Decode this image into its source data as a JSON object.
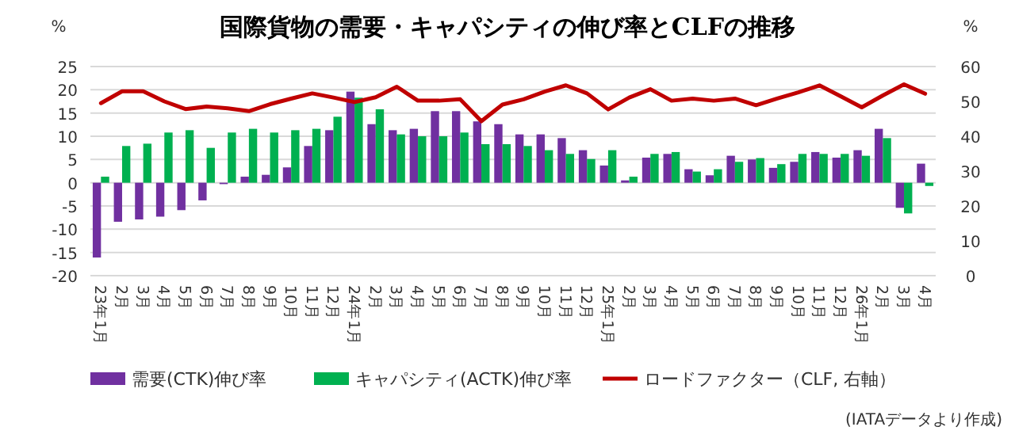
{
  "chart_data": {
    "type": "bar",
    "title": "国際貨物の需要・キャパシティの伸び率とCLFの推移",
    "ylabel": "%",
    "y2label": "%",
    "categories": [
      "23年1月",
      "2月",
      "3月",
      "4月",
      "5月",
      "6月",
      "7月",
      "8月",
      "9月",
      "10月",
      "11月",
      "12月",
      "24年1月",
      "2月",
      "3月",
      "4月",
      "5月",
      "6月",
      "7月",
      "8月",
      "9月",
      "10月",
      "11月",
      "12月",
      "25年1月",
      "2月",
      "3月",
      "4月",
      "5月",
      "6月",
      "7月",
      "8月",
      "9月",
      "10月",
      "11月",
      "12月",
      "26年1月",
      "2月",
      "3月",
      "4月"
    ],
    "series": [
      {
        "name": "需要(CTK)伸び率",
        "color": "#7030a0",
        "values": [
          -16.1,
          -8.4,
          -7.9,
          -7.3,
          -5.9,
          -3.8,
          -0.3,
          1.3,
          1.7,
          3.3,
          7.9,
          11.3,
          19.6,
          12.6,
          11.3,
          11.6,
          15.4,
          15.4,
          13.2,
          12.6,
          10.4,
          10.4,
          9.6,
          7.0,
          3.7,
          0.5,
          5.4,
          6.2,
          2.9,
          1.6,
          5.8,
          5.0,
          3.2,
          4.5,
          6.6,
          5.4,
          7.0,
          11.6,
          -5.4,
          4.1
        ]
      },
      {
        "name": "キャパシティ(ACTK)伸び率",
        "color": "#00b050",
        "values": [
          1.3,
          7.9,
          8.4,
          10.8,
          11.3,
          7.5,
          10.8,
          11.6,
          10.8,
          11.3,
          11.6,
          14.2,
          18.3,
          15.8,
          10.4,
          10.0,
          10.0,
          10.8,
          8.3,
          8.3,
          7.9,
          7.0,
          6.2,
          5.1,
          7.0,
          1.3,
          6.2,
          6.6,
          2.4,
          2.9,
          4.5,
          5.3,
          4.0,
          6.2,
          6.2,
          6.2,
          5.8,
          9.6,
          -6.6,
          -0.7
        ]
      },
      {
        "name": "ロードファクター（CLF, 右軸）",
        "color": "#c00000",
        "type": "line",
        "axis": "y2",
        "values": [
          49.5,
          52.9,
          52.9,
          50.0,
          47.8,
          48.5,
          48.0,
          47.2,
          49.2,
          50.8,
          52.3,
          51.1,
          49.8,
          51.2,
          54.2,
          50.2,
          50.2,
          50.6,
          44.3,
          49.1,
          50.6,
          52.8,
          54.6,
          52.3,
          47.7,
          51.1,
          53.5,
          50.2,
          50.8,
          50.2,
          50.8,
          48.9,
          50.8,
          52.6,
          54.6,
          51.5,
          48.3,
          51.7,
          54.9,
          52.2
        ]
      }
    ],
    "ylim": [
      -20,
      25
    ],
    "yticks": [
      -20,
      -15,
      -10,
      -5,
      0,
      5,
      10,
      15,
      20,
      25
    ],
    "y2lim": [
      0,
      60
    ],
    "y2ticks": [
      0,
      10,
      20,
      30,
      40,
      50,
      60
    ],
    "grid": "y",
    "legend": "bottom",
    "annotations": [
      "(IATAデータより作成)"
    ]
  }
}
